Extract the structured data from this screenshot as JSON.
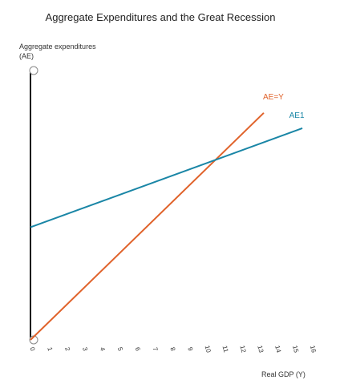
{
  "chart_data": {
    "type": "line",
    "title": "Aggregate Expenditures and the Great Recession",
    "ylabel": [
      "Aggregate expenditures",
      "(AE)"
    ],
    "xlabel": "Real GDP (Y)",
    "x_ticks": [
      "0",
      "1",
      "2",
      "3",
      "4",
      "5",
      "6",
      "7",
      "8",
      "9",
      "10",
      "11",
      "12",
      "13",
      "14",
      "15",
      "16"
    ],
    "xlim": [
      0,
      16
    ],
    "ylim": [
      0,
      17
    ],
    "grid": false,
    "series": [
      {
        "name": "AE=Y",
        "color": "#e0622a",
        "x": [
          0,
          13.3
        ],
        "y": [
          0,
          13.3
        ]
      },
      {
        "name": "AE1",
        "color": "#1a86a6",
        "x": [
          0,
          15.5
        ],
        "y": [
          6.6,
          12.4
        ]
      }
    ]
  }
}
